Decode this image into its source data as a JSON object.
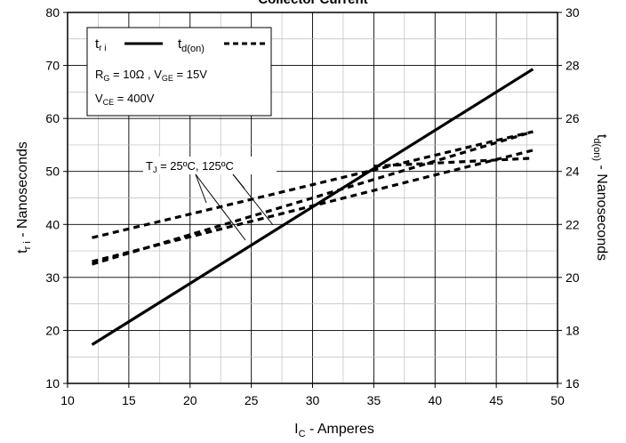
{
  "chart_data": {
    "type": "line",
    "title": "Collector Current",
    "xlabel": {
      "main": "I",
      "sub": "C",
      "rest": " - Amperes"
    },
    "ylabel_left": {
      "main": "t",
      "sub": "r i",
      "rest": " - Nanoseconds"
    },
    "ylabel_right": {
      "main": "t",
      "sub": "d(on)",
      "rest": " - Nanoseconds"
    },
    "xlim": [
      10,
      50
    ],
    "ylim_left": [
      10,
      80
    ],
    "ylim_right": [
      16,
      30
    ],
    "x_ticks": [
      "10",
      "15",
      "20",
      "25",
      "30",
      "35",
      "40",
      "45",
      "50"
    ],
    "y_left_ticks": [
      "10",
      "20",
      "30",
      "40",
      "50",
      "60",
      "70",
      "80"
    ],
    "y_right_ticks": [
      "16",
      "18",
      "20",
      "22",
      "24",
      "26",
      "28",
      "30"
    ],
    "grid": true,
    "legend": {
      "tri": {
        "main": "t",
        "sub": "r i"
      },
      "tdon": {
        "main": "t",
        "sub": "d(on)"
      },
      "cond1": {
        "a": "R",
        "a_sub": "G",
        "b": " = 10Ω ,  V",
        "b_sub": "GE",
        "c": " = 15V"
      },
      "cond2": {
        "a": "V",
        "a_sub": "CE",
        "b": " = 400V"
      }
    },
    "annotation": {
      "a": "T",
      "a_sub": "J",
      "b": " = 25ºC, 125ºC"
    },
    "series": [
      {
        "name": "t r i",
        "axis": "left",
        "style": "solid",
        "x": [
          12,
          48
        ],
        "y": [
          17.3,
          69.3
        ]
      },
      {
        "name": "t d(on)",
        "axis": "right",
        "style": "dashed",
        "x": [
          12,
          48
        ],
        "y": [
          21.5,
          25.5
        ]
      },
      {
        "name": "t d(on)",
        "axis": "right",
        "style": "dashed",
        "x": [
          12,
          48
        ],
        "y": [
          20.5,
          25.5
        ]
      },
      {
        "name": "t d(on)",
        "axis": "right",
        "style": "dashed",
        "x": [
          12,
          48
        ],
        "y": [
          20.6,
          24.8
        ]
      },
      {
        "name": "t d(on)",
        "axis": "right",
        "style": "dashed",
        "x": [
          35,
          48
        ],
        "y": [
          24.2,
          24.5
        ]
      }
    ]
  }
}
